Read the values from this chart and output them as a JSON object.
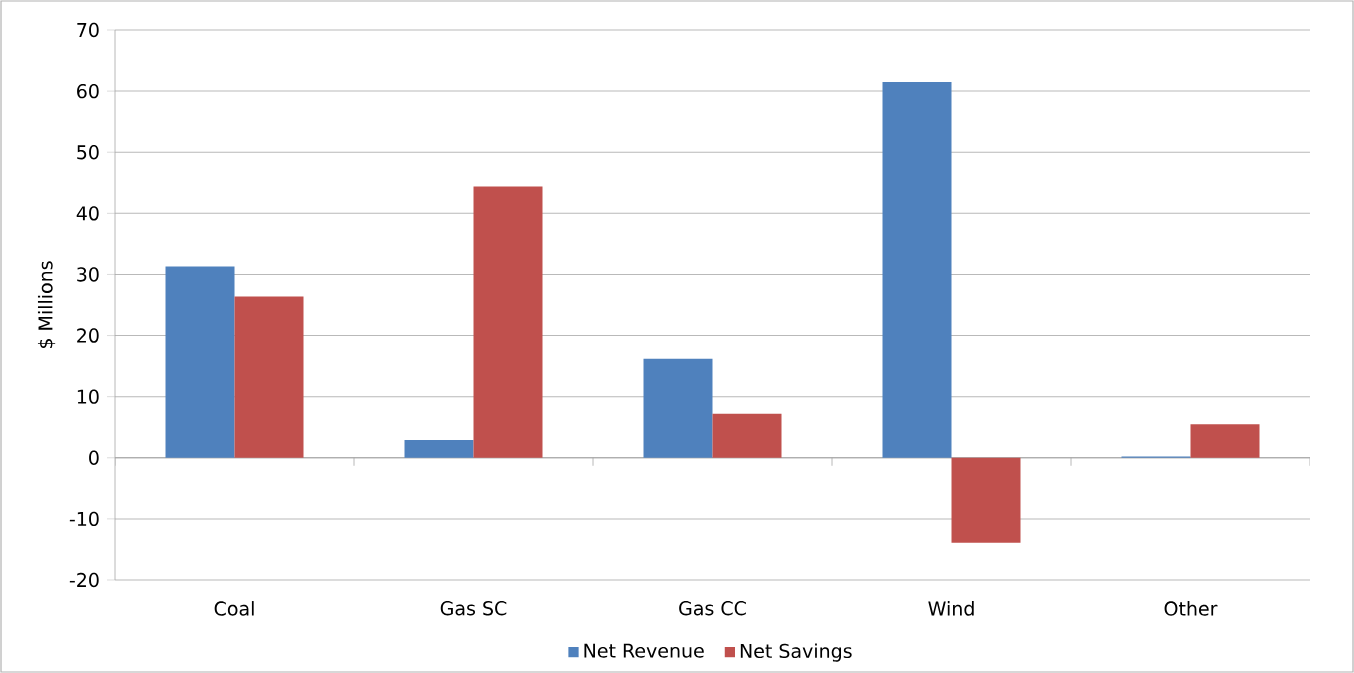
{
  "chart_data": {
    "type": "bar",
    "categories": [
      "Coal",
      "Gas SC",
      "Gas CC",
      "Wind",
      "Other"
    ],
    "series": [
      {
        "name": "Net Revenue",
        "color": "#4f81bd",
        "values": [
          31.3,
          2.9,
          16.2,
          61.5,
          0.2
        ]
      },
      {
        "name": "Net Savings",
        "color": "#c0504d",
        "values": [
          26.4,
          44.4,
          7.2,
          -13.9,
          5.5
        ]
      }
    ],
    "ylabel": "$ Millions",
    "ylim": [
      -20,
      70
    ],
    "yticks": [
      -20,
      -10,
      0,
      10,
      20,
      30,
      40,
      50,
      60,
      70
    ],
    "grid": "y",
    "legend": "bottom"
  }
}
